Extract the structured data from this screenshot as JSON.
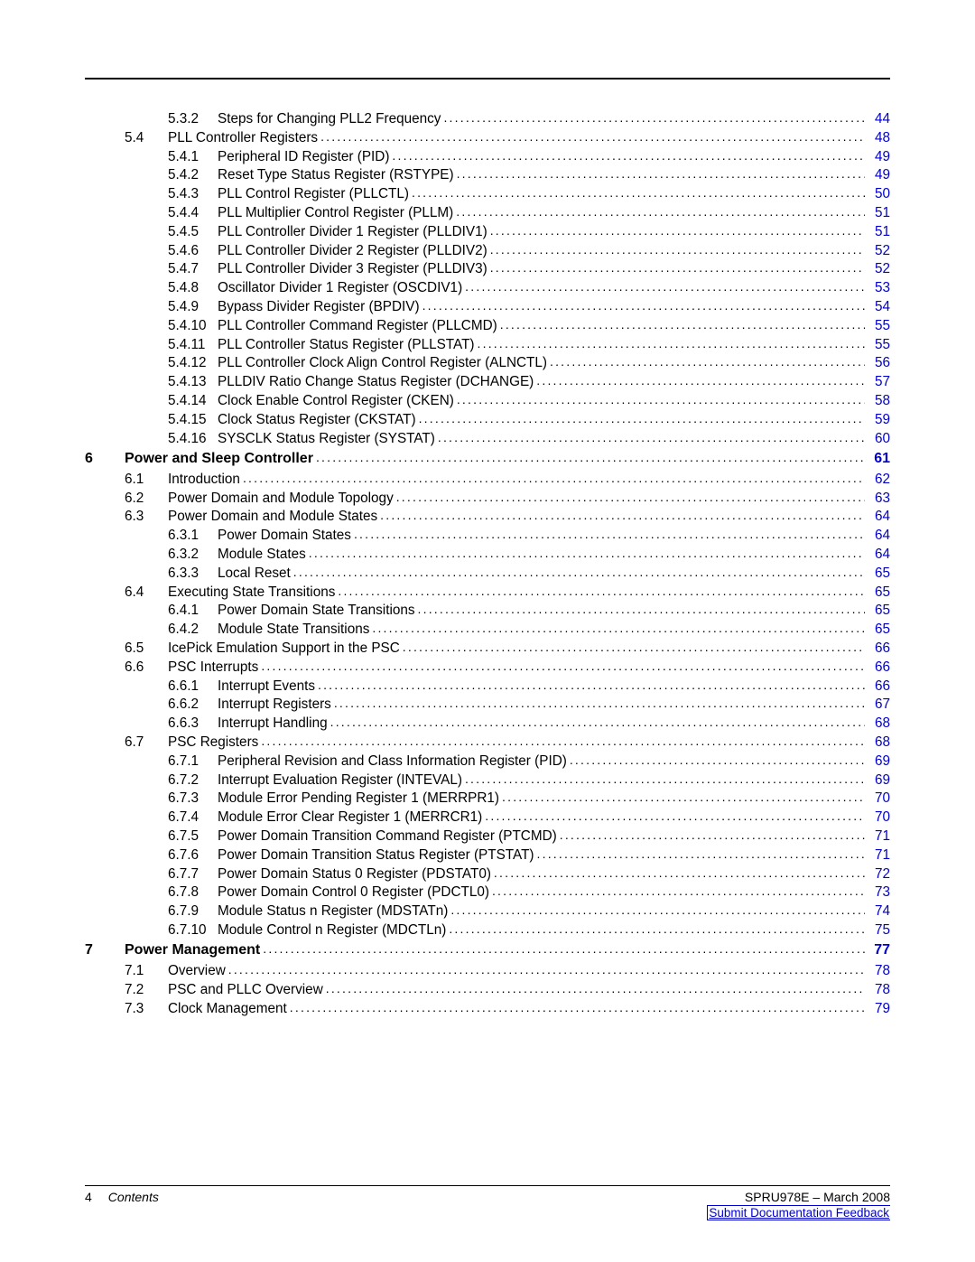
{
  "footer": {
    "page_number": "4",
    "contents_label": "Contents",
    "doc_id": "SPRU978E – March 2008",
    "feedback": "Submit Documentation Feedback"
  },
  "toc": [
    {
      "level": 3,
      "sub": "5.3.2",
      "title": "Steps for Changing PLL2 Frequency",
      "page": "44"
    },
    {
      "level": 2,
      "sec": "5.4",
      "title": "PLL Controller Registers",
      "page": "48"
    },
    {
      "level": 3,
      "sub": "5.4.1",
      "title": "Peripheral ID Register (PID)",
      "page": "49"
    },
    {
      "level": 3,
      "sub": "5.4.2",
      "title": "Reset Type Status Register (RSTYPE)",
      "page": "49"
    },
    {
      "level": 3,
      "sub": "5.4.3",
      "title": "PLL Control Register (PLLCTL)",
      "page": "50"
    },
    {
      "level": 3,
      "sub": "5.4.4",
      "title": "PLL Multiplier Control Register (PLLM)",
      "page": "51"
    },
    {
      "level": 3,
      "sub": "5.4.5",
      "title": "PLL Controller Divider 1 Register (PLLDIV1)",
      "page": "51"
    },
    {
      "level": 3,
      "sub": "5.4.6",
      "title": "PLL Controller Divider 2 Register (PLLDIV2)",
      "page": "52"
    },
    {
      "level": 3,
      "sub": "5.4.7",
      "title": "PLL Controller Divider 3 Register (PLLDIV3)",
      "page": "52"
    },
    {
      "level": 3,
      "sub": "5.4.8",
      "title": "Oscillator Divider 1 Register (OSCDIV1)",
      "page": "53"
    },
    {
      "level": 3,
      "sub": "5.4.9",
      "title": "Bypass Divider Register (BPDIV)",
      "page": "54"
    },
    {
      "level": 3,
      "sub": "5.4.10",
      "title": "PLL Controller Command Register (PLLCMD)",
      "page": "55"
    },
    {
      "level": 3,
      "sub": "5.4.11",
      "title": "PLL Controller Status Register (PLLSTAT)",
      "page": "55"
    },
    {
      "level": 3,
      "sub": "5.4.12",
      "title": "PLL Controller Clock Align Control Register (ALNCTL)",
      "page": "56"
    },
    {
      "level": 3,
      "sub": "5.4.13",
      "title": "PLLDIV Ratio Change Status Register (DCHANGE)",
      "page": "57"
    },
    {
      "level": 3,
      "sub": "5.4.14",
      "title": "Clock Enable Control Register (CKEN)",
      "page": "58"
    },
    {
      "level": 3,
      "sub": "5.4.15",
      "title": "Clock Status Register (CKSTAT)",
      "page": "59"
    },
    {
      "level": 3,
      "sub": "5.4.16",
      "title": "SYSCLK Status Register (SYSTAT)",
      "page": "60"
    },
    {
      "level": 1,
      "chap": "6",
      "title": "Power and Sleep Controller",
      "page": "61"
    },
    {
      "level": 2,
      "sec": "6.1",
      "title": "Introduction",
      "page": "62"
    },
    {
      "level": 2,
      "sec": "6.2",
      "title": "Power Domain and Module Topology",
      "page": "63"
    },
    {
      "level": 2,
      "sec": "6.3",
      "title": "Power Domain and Module States",
      "page": "64"
    },
    {
      "level": 3,
      "sub": "6.3.1",
      "title": "Power Domain States",
      "page": "64"
    },
    {
      "level": 3,
      "sub": "6.3.2",
      "title": "Module States",
      "page": "64"
    },
    {
      "level": 3,
      "sub": "6.3.3",
      "title": "Local Reset",
      "page": "65"
    },
    {
      "level": 2,
      "sec": "6.4",
      "title": "Executing State Transitions",
      "page": "65"
    },
    {
      "level": 3,
      "sub": "6.4.1",
      "title": "Power Domain State Transitions",
      "page": "65"
    },
    {
      "level": 3,
      "sub": "6.4.2",
      "title": "Module State Transitions",
      "page": "65"
    },
    {
      "level": 2,
      "sec": "6.5",
      "title": "IcePick Emulation Support in the PSC",
      "page": "66"
    },
    {
      "level": 2,
      "sec": "6.6",
      "title": "PSC Interrupts",
      "page": "66"
    },
    {
      "level": 3,
      "sub": "6.6.1",
      "title": "Interrupt Events",
      "page": "66"
    },
    {
      "level": 3,
      "sub": "6.6.2",
      "title": "Interrupt Registers",
      "page": "67"
    },
    {
      "level": 3,
      "sub": "6.6.3",
      "title": "Interrupt Handling",
      "page": "68"
    },
    {
      "level": 2,
      "sec": "6.7",
      "title": "PSC Registers",
      "page": "68"
    },
    {
      "level": 3,
      "sub": "6.7.1",
      "title": "Peripheral Revision and Class Information Register (PID)",
      "page": "69"
    },
    {
      "level": 3,
      "sub": "6.7.2",
      "title": "Interrupt Evaluation Register (INTEVAL)",
      "page": "69"
    },
    {
      "level": 3,
      "sub": "6.7.3",
      "title": "Module Error Pending Register 1 (MERRPR1)",
      "page": "70"
    },
    {
      "level": 3,
      "sub": "6.7.4",
      "title": "Module Error Clear Register 1 (MERRCR1)",
      "page": "70"
    },
    {
      "level": 3,
      "sub": "6.7.5",
      "title": "Power Domain Transition Command Register (PTCMD)",
      "page": "71"
    },
    {
      "level": 3,
      "sub": "6.7.6",
      "title": "Power Domain Transition Status Register (PTSTAT)",
      "page": "71"
    },
    {
      "level": 3,
      "sub": "6.7.7",
      "title": "Power Domain Status 0 Register (PDSTAT0)",
      "page": "72"
    },
    {
      "level": 3,
      "sub": "6.7.8",
      "title": "Power Domain Control 0 Register (PDCTL0)",
      "page": "73"
    },
    {
      "level": 3,
      "sub": "6.7.9",
      "title": "Module Status n Register (MDSTATn)",
      "page": "74"
    },
    {
      "level": 3,
      "sub": "6.7.10",
      "title": "Module Control n Register (MDCTLn)",
      "page": "75"
    },
    {
      "level": 1,
      "chap": "7",
      "title": "Power Management",
      "page": "77"
    },
    {
      "level": 2,
      "sec": "7.1",
      "title": "Overview",
      "page": "78"
    },
    {
      "level": 2,
      "sec": "7.2",
      "title": "PSC and PLLC Overview",
      "page": "78"
    },
    {
      "level": 2,
      "sec": "7.3",
      "title": "Clock Management",
      "page": "79"
    }
  ]
}
